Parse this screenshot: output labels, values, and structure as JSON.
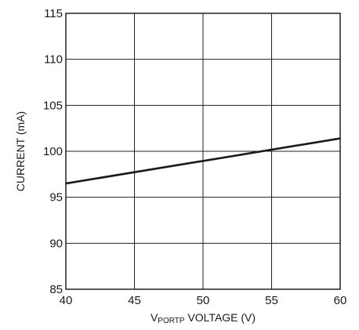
{
  "chart_data": {
    "type": "line",
    "x": [
      40,
      60
    ],
    "series": [
      {
        "values": [
          96.5,
          101.4
        ]
      }
    ],
    "xlim": [
      40,
      60
    ],
    "ylim": [
      85,
      115
    ],
    "xticks": [
      "40",
      "45",
      "50",
      "55",
      "60"
    ],
    "yticks": [
      "85",
      "90",
      "95",
      "100",
      "105",
      "110",
      "115"
    ],
    "xlabel": {
      "prefix": "V",
      "subscript": "PORTP",
      "suffix": " VOLTAGE (V)"
    },
    "ylabel": "CURRENT (mA)",
    "grid": true,
    "colors": {
      "line": "#1a1a1a",
      "grid": "#222222",
      "frame": "#111111"
    }
  }
}
